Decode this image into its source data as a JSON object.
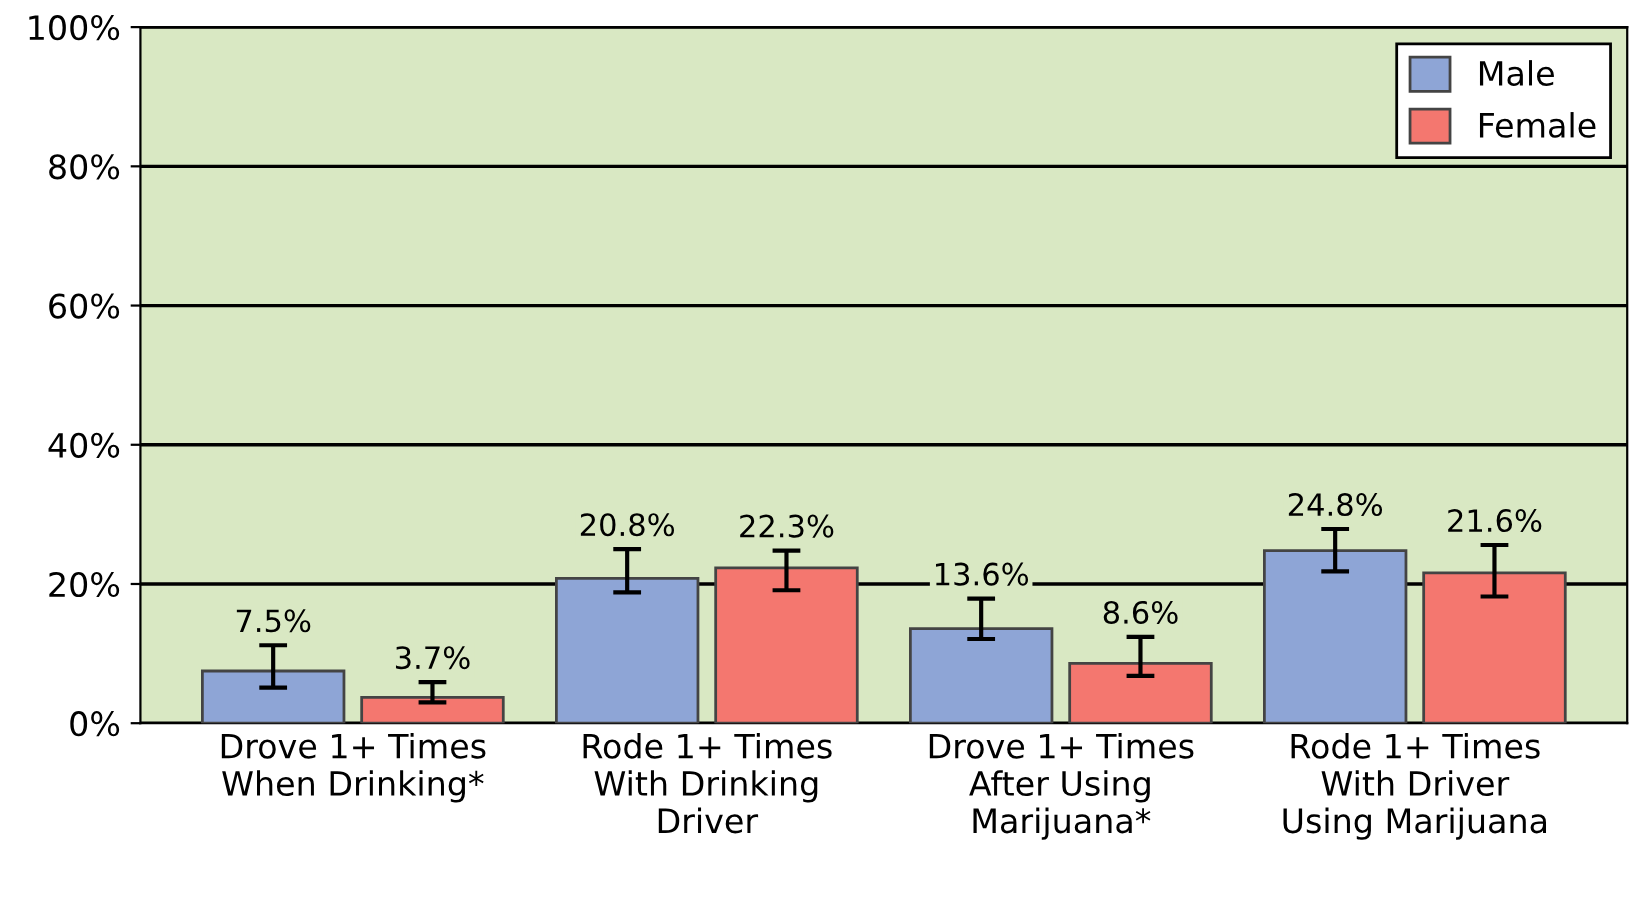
{
  "chart_data": {
    "type": "bar",
    "categories": [
      "Drove 1+ Times\nWhen Drinking*",
      "Rode 1+ Times\nWith Drinking\nDriver",
      "Drove 1+ Times\nAfter Using\nMarijuana*",
      "Rode 1+ Times\nWith Driver\nUsing Marijuana"
    ],
    "series": [
      {
        "name": "Male",
        "color": "#8ea5d6",
        "values": [
          7.5,
          20.8,
          13.6,
          24.8
        ],
        "value_labels": [
          "7.5%",
          "20.8%",
          "13.6%",
          "24.8%"
        ],
        "errors": [
          [
            5.1,
            11.2
          ],
          [
            18.8,
            25.0
          ],
          [
            12.1,
            17.9
          ],
          [
            21.8,
            27.9
          ]
        ]
      },
      {
        "name": "Female",
        "color": "#f4776f",
        "values": [
          3.7,
          22.3,
          8.6,
          21.6
        ],
        "value_labels": [
          "3.7%",
          "22.3%",
          "8.6%",
          "21.6%"
        ],
        "errors": [
          [
            3.0,
            5.9
          ],
          [
            19.1,
            24.8
          ],
          [
            6.8,
            12.4
          ],
          [
            18.2,
            25.6
          ]
        ]
      }
    ],
    "ylim": [
      0,
      100
    ],
    "yticks": [
      {
        "value": 0,
        "label": "0%"
      },
      {
        "value": 20,
        "label": "20%"
      },
      {
        "value": 40,
        "label": "40%"
      },
      {
        "value": 60,
        "label": "60%"
      },
      {
        "value": 80,
        "label": "80%"
      },
      {
        "value": 100,
        "label": "100%"
      }
    ],
    "grid": "y",
    "legend": "top right"
  }
}
